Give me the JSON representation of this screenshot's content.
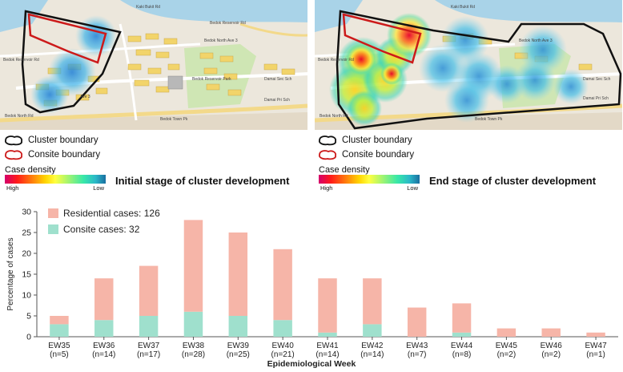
{
  "maps": {
    "left": {
      "labels": [
        "Bedok Reservoir Rd",
        "Bedok North Ave 3",
        "Kaki Bukit Rd",
        "Bedok Reservoir Rd",
        "Bedok Reservoir Park",
        "Damai Sec Sch",
        "Damai Pri Sch",
        "Bedok North Rd",
        "Bedok Town Pk",
        "Ave 3"
      ]
    },
    "right": {
      "labels": [
        "Bedok Reservoir Rd",
        "Bedok North Ave 3",
        "Kaki Bukit Rd",
        "Damai Sec Sch",
        "Damai Pri Sch",
        "Bedok North Rd",
        "Bedok Town Pk"
      ]
    }
  },
  "legend": {
    "cluster_boundary": "Cluster boundary",
    "consite_boundary": "Consite boundary",
    "case_density": "Case density",
    "high": "High",
    "low": "Low",
    "initial_title": "Initial stage of cluster development",
    "end_title": "End stage of cluster development"
  },
  "colors": {
    "cluster_boundary": "#111111",
    "consite_boundary": "#cc1a1a",
    "residential": "#f6b5a8",
    "consite": "#9fe0cd"
  },
  "chart_data": {
    "type": "bar",
    "stacked": true,
    "categories": [
      "EW35",
      "EW36",
      "EW37",
      "EW38",
      "EW39",
      "EW40",
      "EW41",
      "EW42",
      "EW43",
      "EW44",
      "EW45",
      "EW46",
      "EW47"
    ],
    "category_sublabels": [
      "(n=5)",
      "(n=14)",
      "(n=17)",
      "(n=28)",
      "(n=25)",
      "(n=21)",
      "(n=14)",
      "(n=14)",
      "(n=7)",
      "(n=8)",
      "(n=2)",
      "(n=2)",
      "(n=1)"
    ],
    "series": [
      {
        "name": "Consite cases: 32",
        "color": "#9fe0cd",
        "values": [
          3,
          4,
          5,
          6,
          5,
          4,
          1,
          3,
          0,
          1,
          0,
          0,
          0
        ]
      },
      {
        "name": "Residential cases: 126",
        "color": "#f6b5a8",
        "values": [
          2,
          10,
          12,
          22,
          20,
          17,
          13,
          11,
          7,
          7,
          2,
          2,
          1
        ]
      }
    ],
    "xlabel": "Epidemiological Week",
    "ylabel": "Percentage of cases",
    "ylim": [
      0,
      30
    ],
    "yticks": [
      0,
      5,
      10,
      15,
      20,
      25,
      30
    ],
    "legend_position": "top-left",
    "grid": false
  }
}
